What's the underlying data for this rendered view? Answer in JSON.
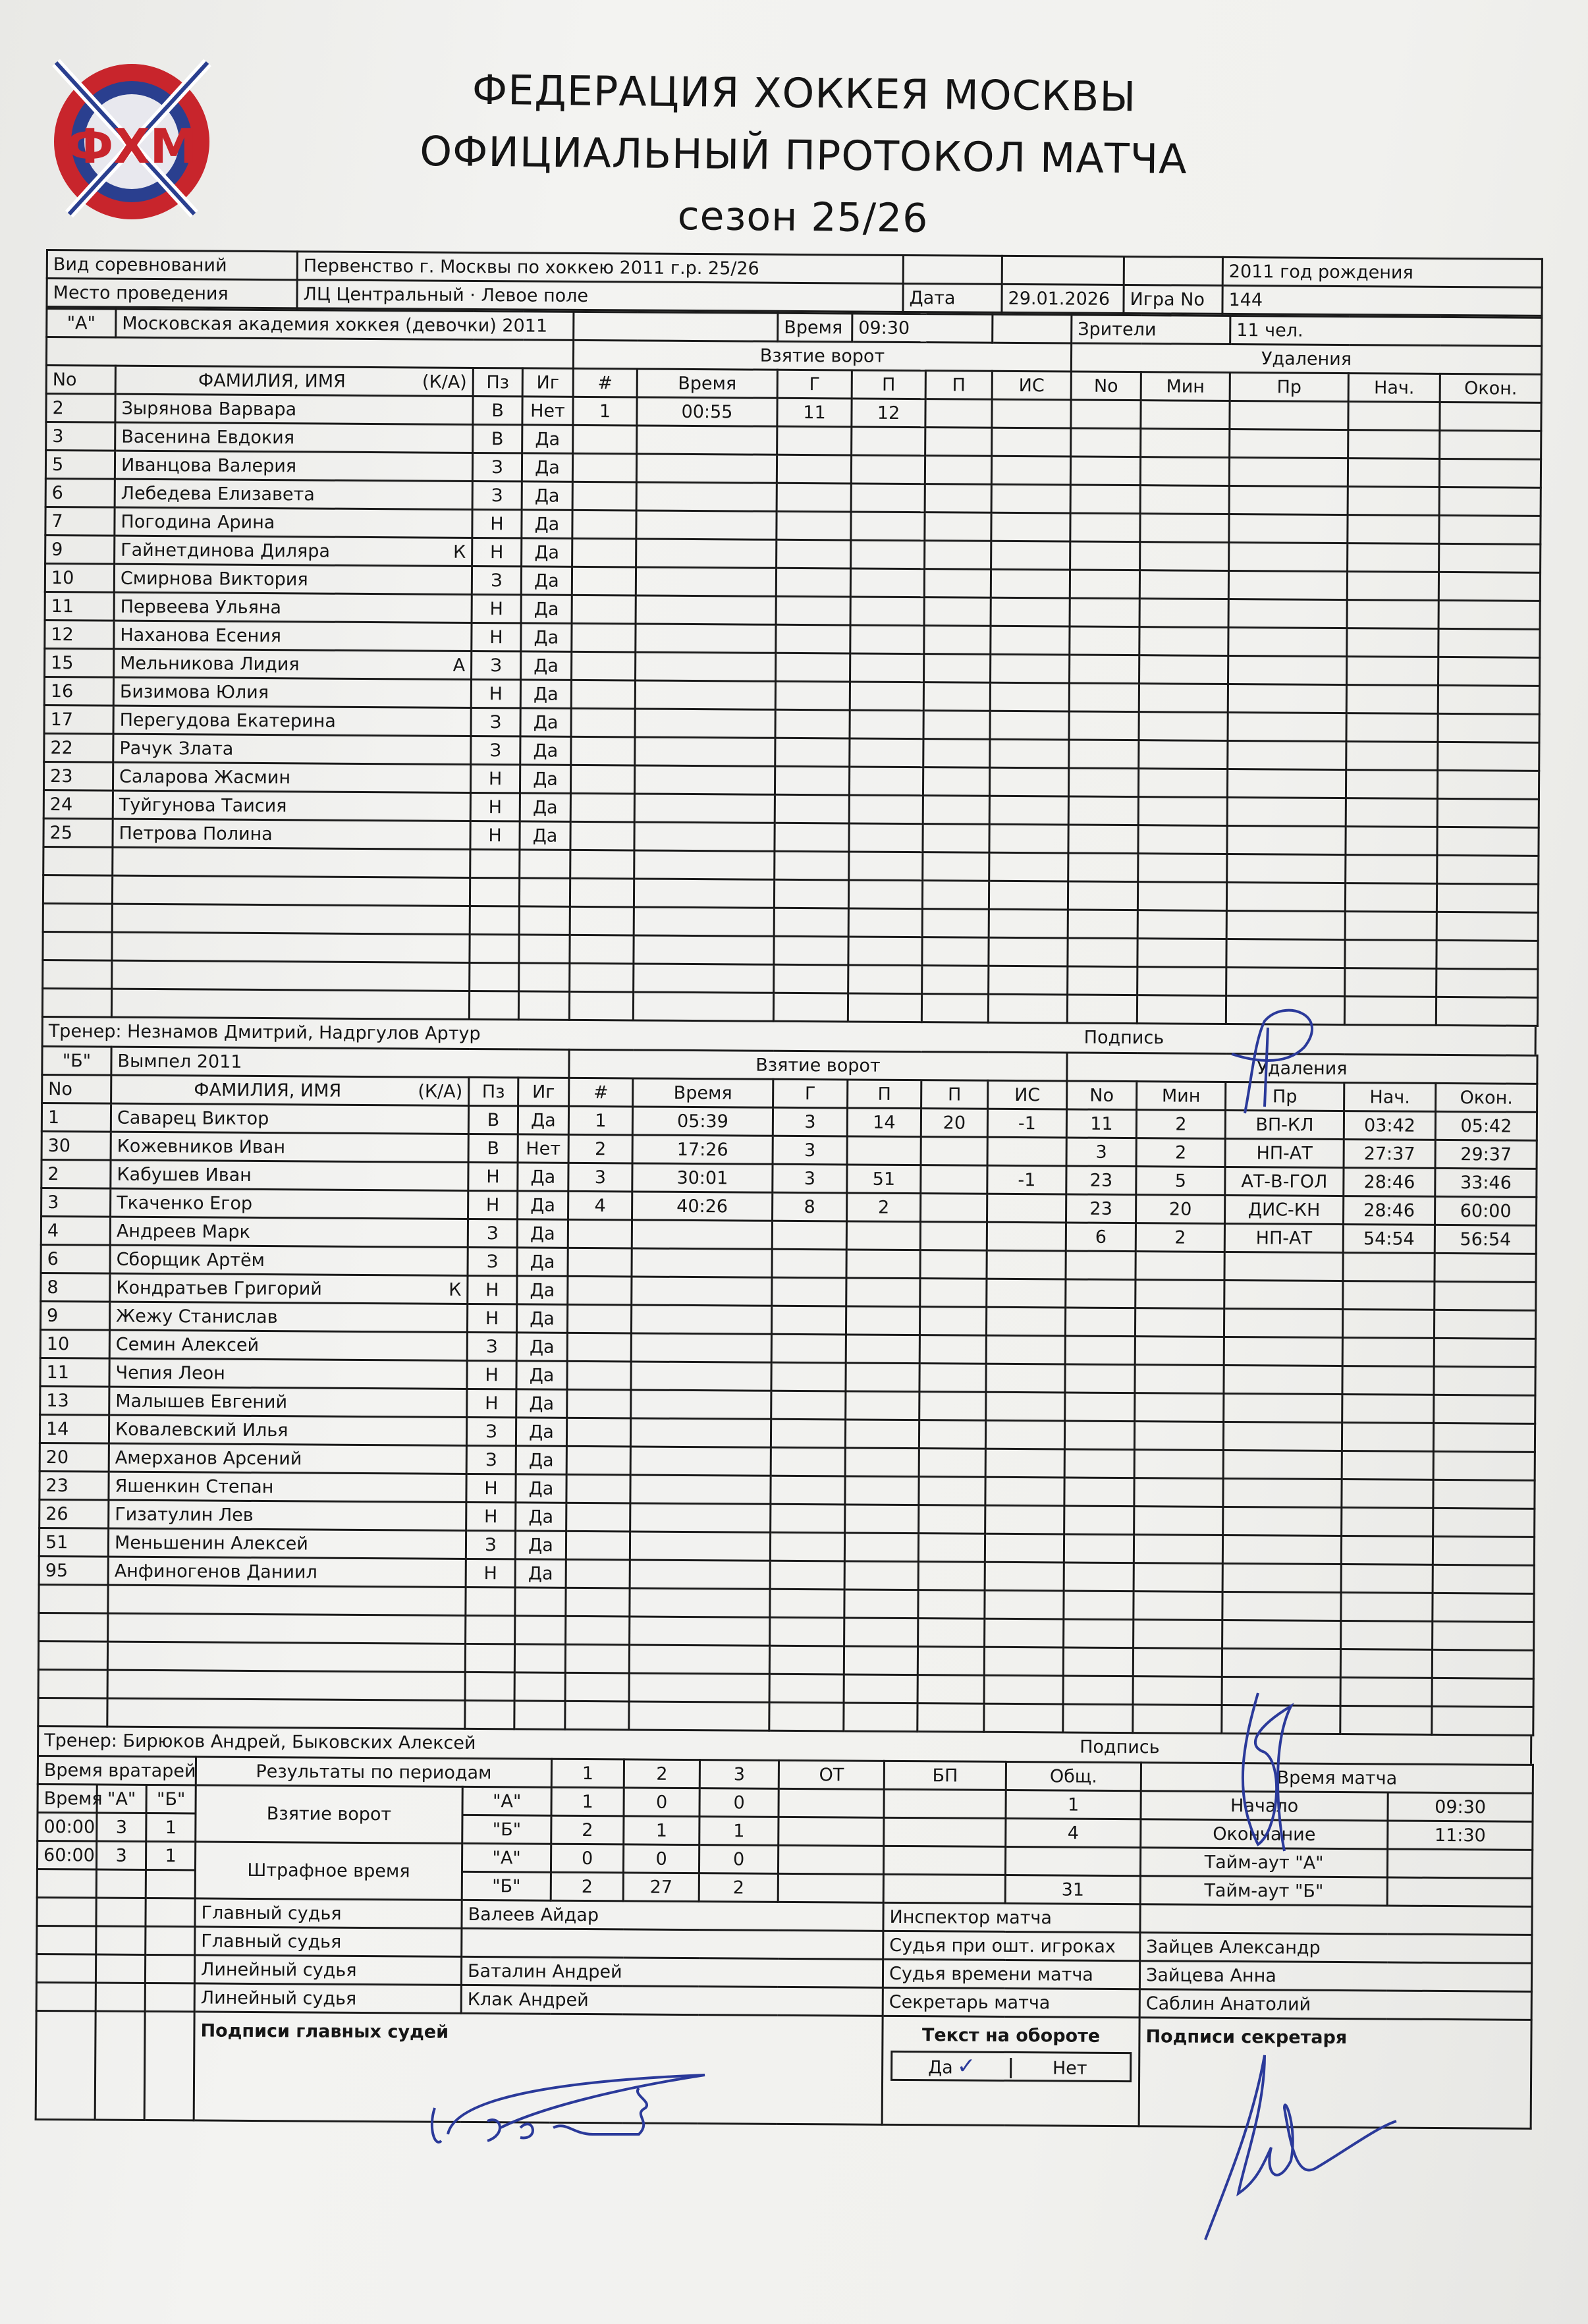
{
  "logo": {
    "text": "ФХМ",
    "colors": {
      "red": "#c8252c",
      "blue": "#2a3f8f"
    }
  },
  "header": {
    "title1": "ФЕДЕРАЦИЯ ХОККЕЯ МОСКВЫ",
    "title2": "ОФИЦИАЛЬНЫЙ ПРОТОКОЛ МАТЧА",
    "season": "сезон 25/26"
  },
  "info": {
    "competition_label": "Вид соревнований",
    "competition": "Первенство г. Москвы по хоккею 2011 г.р. 25/26",
    "birth_year": "2011 год рождения",
    "venue_label": "Место проведения",
    "venue": "ЛЦ Центральный · Левое поле",
    "date_label": "Дата",
    "date": "29.01.2026",
    "game_label": "Игра No",
    "game": "144",
    "time_label": "Время",
    "time": "09:30",
    "spectators_label": "Зрители",
    "spectators": "11 чел."
  },
  "columns": {
    "no": "No",
    "name": "ФАМИЛИЯ, ИМЯ",
    "ka": "(К/А)",
    "pos": "Пз",
    "played": "Иг",
    "goals_title": "Взятие ворот",
    "goal_num": "#",
    "goal_time": "Время",
    "g": "Г",
    "a1": "П",
    "a2": "П",
    "is": "ИС",
    "penalties_title": "Удаления",
    "pen_no": "No",
    "pen_min": "Мин",
    "pen_type": "Пр",
    "pen_start": "Нач.",
    "pen_end": "Окон."
  },
  "team_a": {
    "mark": "\"А\"",
    "name": "Московская академия хоккея (девочки) 2011",
    "coach": "Тренер: Незнамов Дмитрий, Надргулов Артур",
    "signature_label": "Подпись",
    "players": [
      {
        "no": "2",
        "name": "Зырянова Варвара",
        "ka": "",
        "pos": "В",
        "played": "Нет"
      },
      {
        "no": "3",
        "name": "Васенина Евдокия",
        "ka": "",
        "pos": "В",
        "played": "Да"
      },
      {
        "no": "5",
        "name": "Иванцова Валерия",
        "ka": "",
        "pos": "З",
        "played": "Да"
      },
      {
        "no": "6",
        "name": "Лебедева Елизавета",
        "ka": "",
        "pos": "З",
        "played": "Да"
      },
      {
        "no": "7",
        "name": "Погодина Арина",
        "ka": "",
        "pos": "Н",
        "played": "Да"
      },
      {
        "no": "9",
        "name": "Гайнетдинова Диляра",
        "ka": "К",
        "pos": "Н",
        "played": "Да"
      },
      {
        "no": "10",
        "name": "Смирнова Виктория",
        "ka": "",
        "pos": "З",
        "played": "Да"
      },
      {
        "no": "11",
        "name": "Первеева Ульяна",
        "ka": "",
        "pos": "Н",
        "played": "Да"
      },
      {
        "no": "12",
        "name": "Наханова Есения",
        "ka": "",
        "pos": "Н",
        "played": "Да"
      },
      {
        "no": "15",
        "name": "Мельникова Лидия",
        "ka": "А",
        "pos": "З",
        "played": "Да"
      },
      {
        "no": "16",
        "name": "Бизимова Юлия",
        "ka": "",
        "pos": "Н",
        "played": "Да"
      },
      {
        "no": "17",
        "name": "Перегудова Екатерина",
        "ka": "",
        "pos": "З",
        "played": "Да"
      },
      {
        "no": "22",
        "name": "Рачук Злата",
        "ka": "",
        "pos": "З",
        "played": "Да"
      },
      {
        "no": "23",
        "name": "Саларова Жасмин",
        "ka": "",
        "pos": "Н",
        "played": "Да"
      },
      {
        "no": "24",
        "name": "Туйгунова Таисия",
        "ka": "",
        "pos": "Н",
        "played": "Да"
      },
      {
        "no": "25",
        "name": "Петрова Полина",
        "ka": "",
        "pos": "Н",
        "played": "Да"
      }
    ],
    "goals": [
      {
        "num": "1",
        "time": "00:55",
        "g": "11",
        "a1": "12",
        "a2": "",
        "is": ""
      }
    ],
    "penalties": []
  },
  "team_b": {
    "mark": "\"Б\"",
    "name": "Вымпел 2011",
    "coach": "Тренер: Бирюков Андрей, Быковских Алексей",
    "signature_label": "Подпись",
    "players": [
      {
        "no": "1",
        "name": "Саварец Виктор",
        "ka": "",
        "pos": "В",
        "played": "Да"
      },
      {
        "no": "30",
        "name": "Кожевников Иван",
        "ka": "",
        "pos": "В",
        "played": "Нет"
      },
      {
        "no": "2",
        "name": "Кабушев Иван",
        "ka": "",
        "pos": "Н",
        "played": "Да"
      },
      {
        "no": "3",
        "name": "Ткаченко Егор",
        "ka": "",
        "pos": "Н",
        "played": "Да"
      },
      {
        "no": "4",
        "name": "Андреев Марк",
        "ka": "",
        "pos": "З",
        "played": "Да"
      },
      {
        "no": "6",
        "name": "Сборщик Артём",
        "ka": "",
        "pos": "З",
        "played": "Да"
      },
      {
        "no": "8",
        "name": "Кондратьев Григорий",
        "ka": "К",
        "pos": "Н",
        "played": "Да"
      },
      {
        "no": "9",
        "name": "Жежу Станислав",
        "ka": "",
        "pos": "Н",
        "played": "Да"
      },
      {
        "no": "10",
        "name": "Семин Алексей",
        "ka": "",
        "pos": "З",
        "played": "Да"
      },
      {
        "no": "11",
        "name": "Чепия Леон",
        "ka": "",
        "pos": "Н",
        "played": "Да"
      },
      {
        "no": "13",
        "name": "Малышев Евгений",
        "ka": "",
        "pos": "Н",
        "played": "Да"
      },
      {
        "no": "14",
        "name": "Ковалевский Илья",
        "ka": "",
        "pos": "З",
        "played": "Да"
      },
      {
        "no": "20",
        "name": "Амерханов Арсений",
        "ka": "",
        "pos": "З",
        "played": "Да"
      },
      {
        "no": "23",
        "name": "Яшенкин Степан",
        "ka": "",
        "pos": "Н",
        "played": "Да"
      },
      {
        "no": "26",
        "name": "Гизатулин Лев",
        "ka": "",
        "pos": "Н",
        "played": "Да"
      },
      {
        "no": "51",
        "name": "Меньшенин Алексей",
        "ka": "",
        "pos": "З",
        "played": "Да"
      },
      {
        "no": "95",
        "name": "Анфиногенов Даниил",
        "ka": "",
        "pos": "Н",
        "played": "Да"
      }
    ],
    "goals": [
      {
        "num": "1",
        "time": "05:39",
        "g": "3",
        "a1": "14",
        "a2": "20",
        "is": "-1"
      },
      {
        "num": "2",
        "time": "17:26",
        "g": "3",
        "a1": "",
        "a2": "",
        "is": ""
      },
      {
        "num": "3",
        "time": "30:01",
        "g": "3",
        "a1": "51",
        "a2": "",
        "is": "-1"
      },
      {
        "num": "4",
        "time": "40:26",
        "g": "8",
        "a1": "2",
        "a2": "",
        "is": ""
      }
    ],
    "penalties": [
      {
        "no": "11",
        "min": "2",
        "type": "ВП-КЛ",
        "start": "03:42",
        "end": "05:42"
      },
      {
        "no": "3",
        "min": "2",
        "type": "НП-АТ",
        "start": "27:37",
        "end": "29:37"
      },
      {
        "no": "23",
        "min": "5",
        "type": "АТ-В-ГОЛ",
        "start": "28:46",
        "end": "33:46"
      },
      {
        "no": "23",
        "min": "20",
        "type": "ДИС-КН",
        "start": "28:46",
        "end": "60:00"
      },
      {
        "no": "6",
        "min": "2",
        "type": "НП-АТ",
        "start": "54:54",
        "end": "56:54"
      }
    ]
  },
  "summary": {
    "goalie_title": "Время вратарей",
    "goalie_headers": [
      "Время",
      "\"А\"",
      "\"Б\""
    ],
    "goalie_rows": [
      [
        "00:00",
        "3",
        "1"
      ],
      [
        "60:00",
        "3",
        "1"
      ]
    ],
    "periods_title": "Результаты по периодам",
    "period_headers": [
      "1",
      "2",
      "3",
      "ОТ",
      "БП",
      "Общ."
    ],
    "goals_label": "Взятие ворот",
    "penalty_label": "Штрафное время",
    "team_a_mark": "\"А\"",
    "team_b_mark": "\"Б\"",
    "goals_a": [
      "1",
      "0",
      "0",
      "",
      "",
      "1"
    ],
    "goals_b": [
      "2",
      "1",
      "1",
      "",
      "",
      "4"
    ],
    "pen_a": [
      "0",
      "0",
      "0",
      "",
      "",
      ""
    ],
    "pen_b": [
      "2",
      "27",
      "2",
      "",
      "",
      "31"
    ],
    "match_time_title": "Время матча",
    "start_label": "Начало",
    "start": "09:30",
    "end_label": "Окончание",
    "end": "11:30",
    "timeout_a_label": "Тайм-аут \"А\"",
    "timeout_b_label": "Тайм-аут \"Б\""
  },
  "officials": {
    "left": [
      {
        "role": "Главный судья",
        "name": "Валеев Айдар"
      },
      {
        "role": "Главный судья",
        "name": ""
      },
      {
        "role": "Линейный судья",
        "name": "Баталин Андрей"
      },
      {
        "role": "Линейный судья",
        "name": "Клак Андрей"
      }
    ],
    "right": [
      {
        "role": "Инспектор матча",
        "name": ""
      },
      {
        "role": "Судья при ошт. игроках",
        "name": "Зайцев Александр"
      },
      {
        "role": "Судья времени матча",
        "name": "Зайцева Анна"
      },
      {
        "role": "Секретарь матча",
        "name": "Саблин Анатолий"
      }
    ],
    "referee_signatures_label": "Подписи главных судей",
    "secretary_signatures_label": "Подписи секретаря",
    "reverse_text_label": "Текст на обороте",
    "reverse_yes": "Да",
    "reverse_no": "Нет",
    "reverse_checked": "yes",
    "ink_color": "#2b3a9a"
  }
}
